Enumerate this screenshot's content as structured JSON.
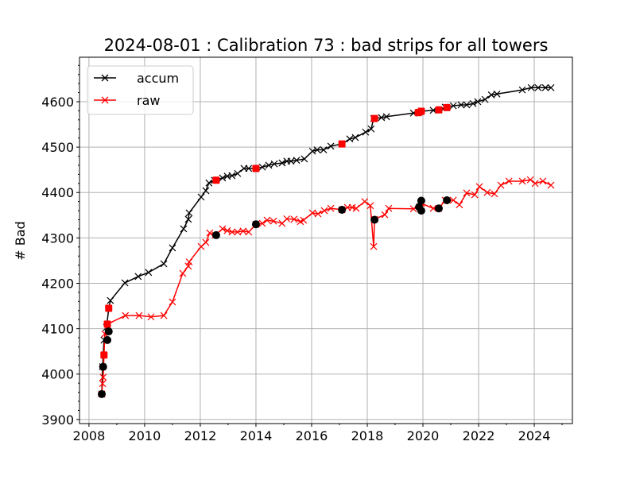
{
  "chart_data": {
    "type": "line",
    "title": "2024-08-01 : Calibration 73 : bad strips for all towers",
    "xlabel": "",
    "ylabel": "# Bad",
    "xlim": [
      2007.66,
      2025.37
    ],
    "ylim": [
      3891,
      4698
    ],
    "xticks": [
      2008,
      2010,
      2012,
      2014,
      2016,
      2018,
      2020,
      2022,
      2024
    ],
    "yticks": [
      3900,
      4000,
      4100,
      4200,
      4300,
      4400,
      4500,
      4600
    ],
    "grid": true,
    "legend_position": "top-left",
    "series": [
      {
        "name": "accum",
        "color": "#000000",
        "marker": "x",
        "x": [
          2008.46,
          2008.49,
          2008.54,
          2008.63,
          2008.71,
          2008.77,
          2009.29,
          2009.77,
          2010.14,
          2010.69,
          2011.0,
          2011.4,
          2011.57,
          2011.6,
          2012.03,
          2012.2,
          2012.31,
          2012.51,
          2012.8,
          2012.97,
          2013.14,
          2013.34,
          2013.57,
          2013.74,
          2014.0,
          2014.23,
          2014.46,
          2014.66,
          2014.94,
          2015.11,
          2015.26,
          2015.46,
          2015.74,
          2016.03,
          2016.2,
          2016.43,
          2016.69,
          2017.09,
          2017.37,
          2017.57,
          2017.94,
          2018.14,
          2018.23,
          2018.51,
          2018.69,
          2019.66,
          2019.86,
          2019.94,
          2020.37,
          2020.57,
          2020.8,
          2021.09,
          2021.37,
          2021.57,
          2021.8,
          2021.97,
          2022.23,
          2022.46,
          2022.66,
          2023.57,
          2023.89,
          2024.14,
          2024.4,
          2024.6
        ],
        "y": [
          3956,
          4016,
          4075,
          4103,
          4145,
          4162,
          4201,
          4215,
          4224,
          4243,
          4278,
          4320,
          4341,
          4355,
          4390,
          4404,
          4421,
          4427,
          4432,
          4436,
          4437,
          4442,
          4453,
          4453,
          4453,
          4456,
          4460,
          4463,
          4465,
          4469,
          4469,
          4471,
          4474,
          4491,
          4494,
          4494,
          4502,
          4507,
          4518,
          4521,
          4533,
          4540,
          4563,
          4565,
          4567,
          4575,
          4577,
          4579,
          4581,
          4582,
          4588,
          4591,
          4593,
          4593,
          4596,
          4600,
          4605,
          4615,
          4617,
          4626,
          4631,
          4631,
          4631,
          4631
        ],
        "highlight_color": "#ff0000",
        "highlight_points": [
          [
            2008.54,
            4042
          ],
          [
            2008.66,
            4110
          ],
          [
            2008.71,
            4145
          ],
          [
            2012.57,
            4427
          ],
          [
            2014.0,
            4453
          ],
          [
            2017.09,
            4507
          ],
          [
            2018.26,
            4563
          ],
          [
            2019.83,
            4576
          ],
          [
            2019.94,
            4579
          ],
          [
            2020.57,
            4582
          ],
          [
            2020.86,
            4587
          ]
        ]
      },
      {
        "name": "raw",
        "color": "#ff0000",
        "marker": "x",
        "x": [
          2008.46,
          2008.49,
          2008.51,
          2008.54,
          2008.57,
          2008.66,
          2009.31,
          2009.8,
          2010.23,
          2010.69,
          2011.0,
          2011.37,
          2011.57,
          2011.6,
          2012.03,
          2012.2,
          2012.34,
          2012.54,
          2012.8,
          2012.97,
          2013.14,
          2013.34,
          2013.54,
          2013.74,
          2014.0,
          2014.23,
          2014.4,
          2014.63,
          2014.94,
          2015.11,
          2015.37,
          2015.6,
          2015.71,
          2016.03,
          2016.23,
          2016.46,
          2016.69,
          2017.09,
          2017.29,
          2017.46,
          2017.6,
          2017.91,
          2018.11,
          2018.23,
          2018.26,
          2018.63,
          2018.77,
          2019.66,
          2019.89,
          2019.94,
          2020.37,
          2020.57,
          2020.8,
          2021.09,
          2021.31,
          2021.57,
          2021.86,
          2022.03,
          2022.31,
          2022.57,
          2022.8,
          2023.09,
          2023.57,
          2023.86,
          2024.03,
          2024.31,
          2024.6
        ],
        "y": [
          3956,
          3979,
          3993,
          4042,
          4089,
          4110,
          4129,
          4129,
          4126,
          4129,
          4159,
          4222,
          4238,
          4247,
          4281,
          4290,
          4311,
          4306,
          4320,
          4316,
          4313,
          4313,
          4315,
          4313,
          4330,
          4332,
          4339,
          4337,
          4332,
          4342,
          4341,
          4336,
          4339,
          4355,
          4353,
          4360,
          4365,
          4362,
          4367,
          4367,
          4365,
          4380,
          4371,
          4281,
          4341,
          4351,
          4365,
          4364,
          4369,
          4376,
          4365,
          4365,
          4383,
          4383,
          4373,
          4399,
          4395,
          4413,
          4400,
          4397,
          4416,
          4425,
          4425,
          4428,
          4420,
          4425,
          4416
        ],
        "highlight_color": "#000000",
        "highlight_points": [
          [
            2008.46,
            3956
          ],
          [
            2008.51,
            4016
          ],
          [
            2008.66,
            4075
          ],
          [
            2008.71,
            4094
          ],
          [
            2012.57,
            4306
          ],
          [
            2014.0,
            4330
          ],
          [
            2017.09,
            4362
          ],
          [
            2018.26,
            4340
          ],
          [
            2019.86,
            4368
          ],
          [
            2019.94,
            4382
          ],
          [
            2019.94,
            4360
          ],
          [
            2020.57,
            4365
          ],
          [
            2020.86,
            4383
          ]
        ]
      }
    ]
  }
}
